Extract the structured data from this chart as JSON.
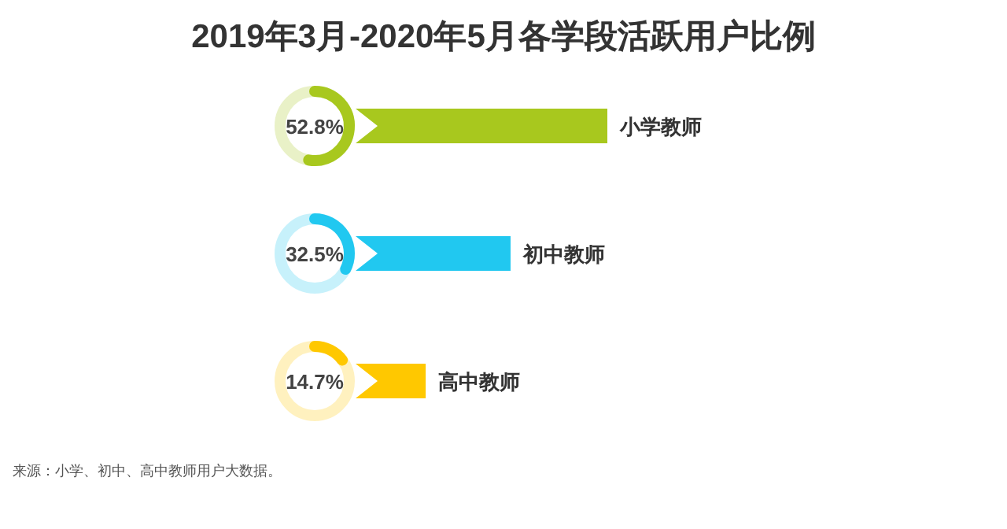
{
  "chart_data": {
    "type": "bar",
    "orientation": "horizontal",
    "title": "2019年3月-2020年5月各学段活跃用户比例",
    "categories": [
      "小学教师",
      "初中教师",
      "高中教师"
    ],
    "values": [
      52.8,
      32.5,
      14.7
    ],
    "colors": [
      "#a8c81e",
      "#21c8f0",
      "#ffc800"
    ],
    "value_labels": [
      "52.8%",
      "32.5%",
      "14.7%"
    ],
    "annotations": [
      "来源：小学、初中、高中教师用户大数据。"
    ]
  }
}
